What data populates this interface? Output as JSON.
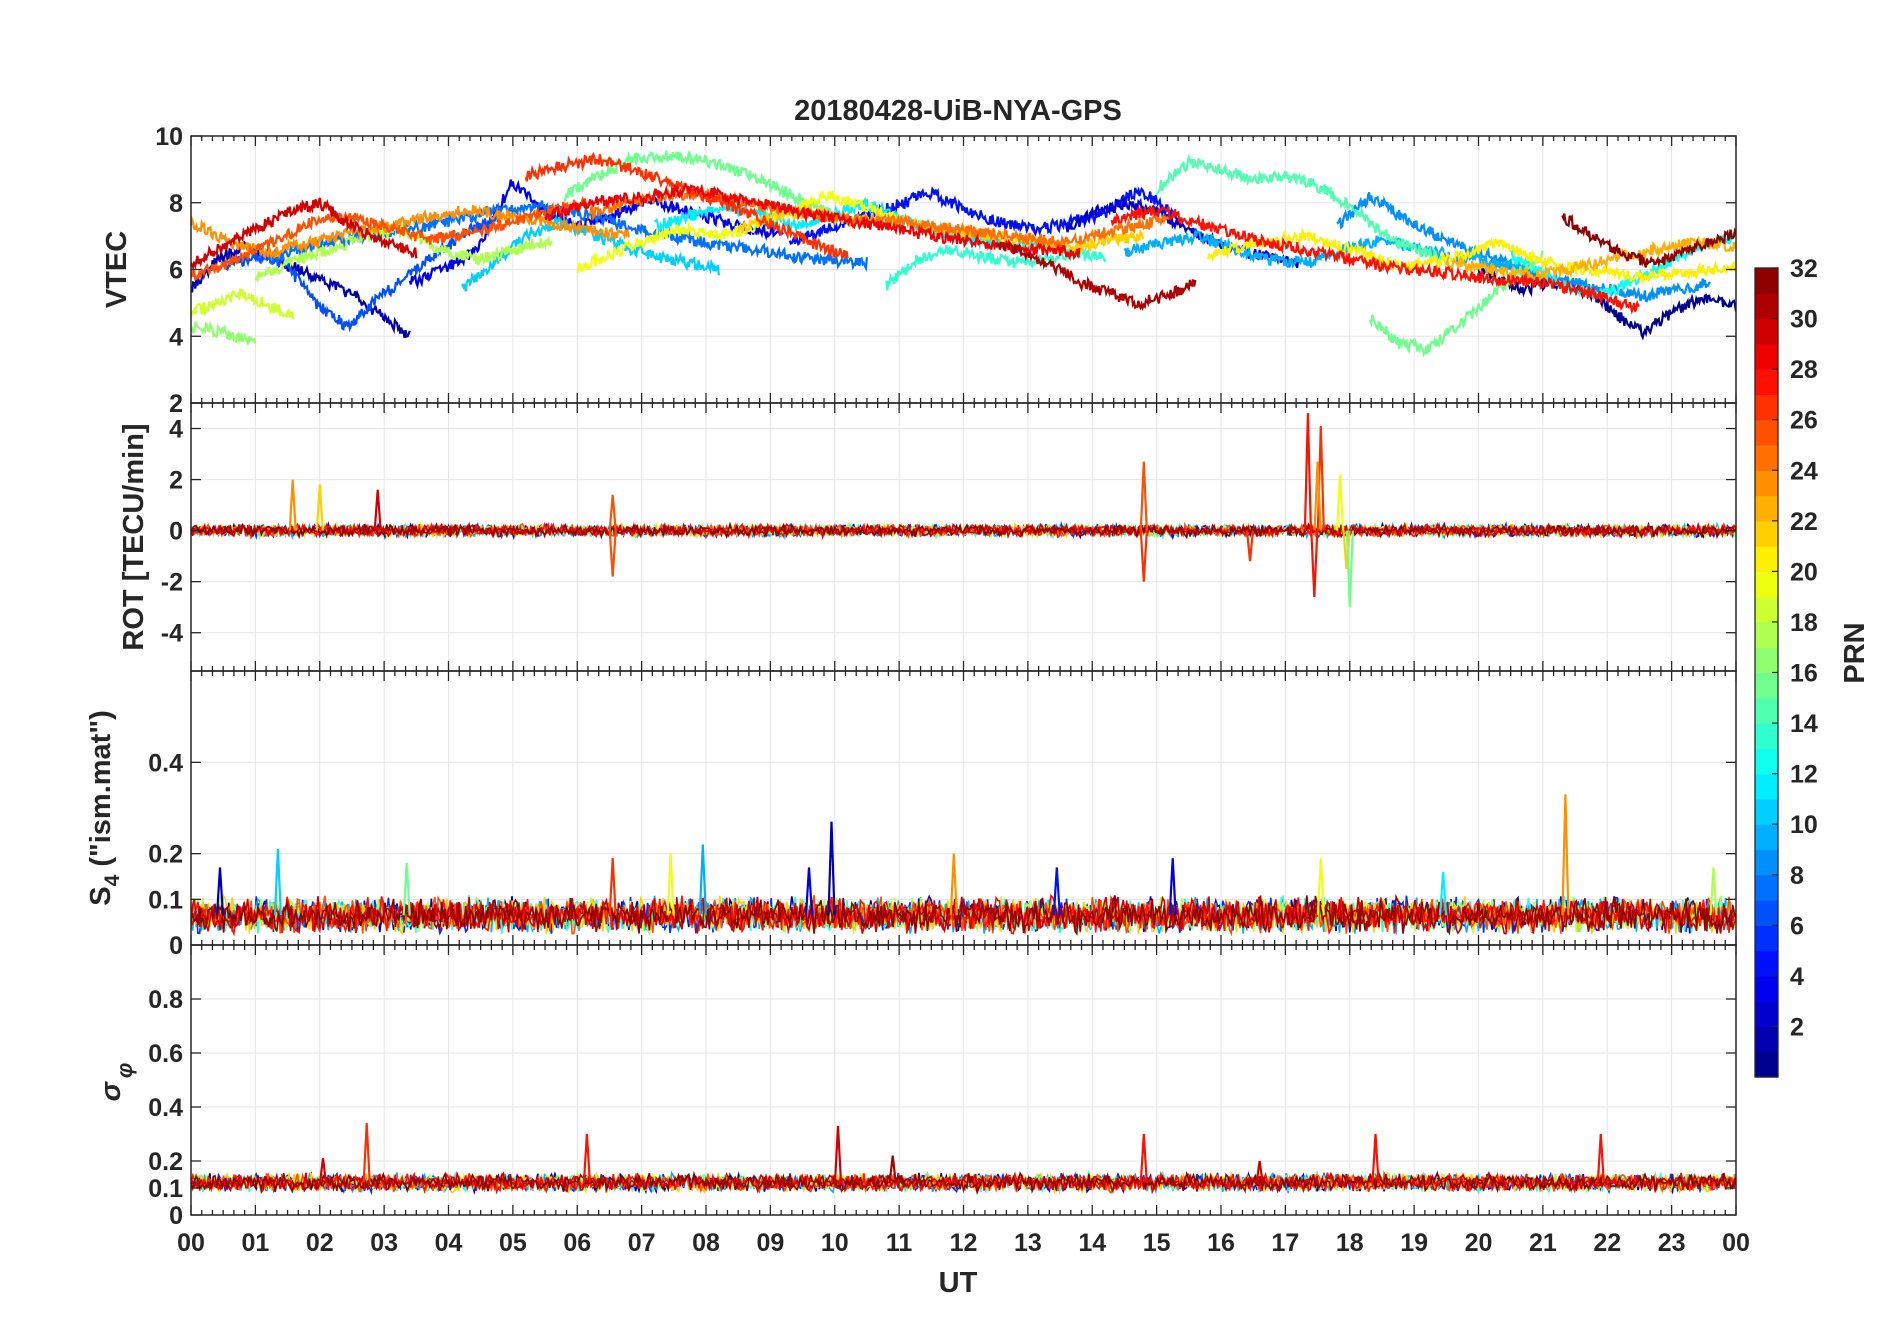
{
  "chart_data": {
    "type": "line",
    "title": "20180428-UiB-NYA-GPS",
    "xlabel": "UT",
    "x_tick_labels": [
      "00",
      "01",
      "02",
      "03",
      "04",
      "05",
      "06",
      "07",
      "08",
      "09",
      "10",
      "11",
      "12",
      "13",
      "14",
      "15",
      "16",
      "17",
      "18",
      "19",
      "20",
      "21",
      "22",
      "23",
      "00"
    ],
    "xlim_hours": [
      0,
      24
    ],
    "grid": true,
    "colorbar": {
      "label": "PRN",
      "range": [
        1,
        32
      ],
      "levels": 32,
      "colormap": "jet",
      "tick_labels": [
        "2",
        "4",
        "6",
        "8",
        "10",
        "12",
        "14",
        "16",
        "18",
        "20",
        "22",
        "24",
        "26",
        "28",
        "30",
        "32"
      ],
      "tick_values": [
        2,
        4,
        6,
        8,
        10,
        12,
        14,
        16,
        18,
        20,
        22,
        24,
        26,
        28,
        30,
        32
      ]
    },
    "panels": [
      {
        "name": "vtec",
        "ylabel": "VTEC",
        "ylim": [
          2,
          10
        ],
        "y_ticks": [
          2,
          4,
          6,
          8,
          10
        ],
        "y_tick_labels": [
          "2",
          "4",
          "6",
          "8",
          "10"
        ],
        "series": [
          {
            "prn": 2,
            "start": 0.0,
            "end": 3.4,
            "values": [
              5.4,
              6.3,
              6.7,
              6.3,
              6.0,
              5.6,
              5.2,
              4.6,
              4.0
            ]
          },
          {
            "prn": 4,
            "start": 3.4,
            "end": 9.2,
            "values": [
              5.6,
              6.0,
              6.6,
              8.6,
              7.7,
              7.3,
              7.6,
              8.1,
              7.8,
              7.5,
              7.2,
              7.1
            ]
          },
          {
            "prn": 5,
            "start": 9.3,
            "end": 15.3,
            "values": [
              6.8,
              7.2,
              7.6,
              7.9,
              8.3,
              7.8,
              7.4,
              7.2,
              7.4,
              7.7,
              8.4,
              7.6
            ]
          },
          {
            "prn": 3,
            "start": 13.6,
            "end": 17.2,
            "values": [
              7.2,
              7.8,
              8.0,
              7.6,
              7.0,
              6.6,
              6.4,
              6.2
            ]
          },
          {
            "prn": 1,
            "start": 20.0,
            "end": 24.0,
            "values": [
              6.0,
              5.7,
              5.4,
              5.6,
              5.5,
              5.2,
              4.6,
              4.1,
              4.6,
              5.0,
              5.1,
              4.9
            ]
          },
          {
            "prn": 7,
            "start": 0.5,
            "end": 4.8,
            "values": [
              6.1,
              6.4,
              6.2,
              5.0,
              4.3,
              5.1,
              5.8,
              6.5,
              7.2,
              7.6
            ]
          },
          {
            "prn": 8,
            "start": 1.2,
            "end": 10.5,
            "values": [
              6.3,
              6.8,
              7.1,
              7.3,
              7.7,
              7.9,
              7.6,
              7.1,
              6.8,
              6.6,
              6.3,
              6.2
            ]
          },
          {
            "prn": 9,
            "start": 17.8,
            "end": 23.6,
            "values": [
              7.3,
              8.2,
              7.5,
              7.0,
              6.6,
              6.2,
              5.8,
              5.6,
              5.4,
              5.2,
              5.4,
              5.6
            ]
          },
          {
            "prn": 10,
            "start": 14.5,
            "end": 20.8,
            "values": [
              6.5,
              6.8,
              7.0,
              6.6,
              6.3,
              6.2,
              6.6,
              6.9,
              6.6,
              6.4,
              6.2,
              6.1
            ]
          },
          {
            "prn": 11,
            "start": 4.2,
            "end": 8.2,
            "values": [
              5.4,
              6.2,
              7.0,
              7.4,
              7.1,
              6.7,
              6.4,
              6.2,
              6.0
            ]
          },
          {
            "prn": 12,
            "start": 7.2,
            "end": 13.2,
            "values": [
              7.3,
              7.6,
              7.9,
              7.7,
              7.3,
              7.6,
              8.0,
              7.5,
              7.2,
              6.9,
              6.7,
              6.8
            ]
          },
          {
            "prn": 13,
            "start": 20.5,
            "end": 24.0,
            "values": [
              6.4,
              6.0,
              5.5,
              5.2,
              5.5,
              5.9,
              6.4,
              6.8,
              7.0
            ]
          },
          {
            "prn": 14,
            "start": 10.8,
            "end": 14.2,
            "values": [
              5.5,
              6.3,
              6.6,
              6.4,
              6.2,
              6.3,
              6.5,
              6.4
            ]
          },
          {
            "prn": 15,
            "start": 15.0,
            "end": 19.5,
            "values": [
              8.4,
              9.2,
              9.0,
              8.7,
              8.8,
              8.5,
              7.9,
              7.1,
              6.6,
              6.3
            ]
          },
          {
            "prn": 16,
            "start": 5.8,
            "end": 10.0,
            "values": [
              8.2,
              8.8,
              9.3,
              9.4,
              9.3,
              9.0,
              8.6,
              8.1,
              7.6
            ]
          },
          {
            "prn": 17,
            "start": 0.0,
            "end": 1.0,
            "values": [
              4.3,
              4.2,
              4.0,
              3.8
            ]
          },
          {
            "prn": 16,
            "start": 18.3,
            "end": 21.0,
            "values": [
              4.6,
              3.8,
              3.6,
              4.3,
              5.0,
              5.8,
              6.4
            ]
          },
          {
            "prn": 18,
            "start": 1.0,
            "end": 5.6,
            "values": [
              5.8,
              6.2,
              6.6,
              7.0,
              7.2,
              6.6,
              6.3,
              6.6,
              6.9
            ]
          },
          {
            "prn": 19,
            "start": 0.0,
            "end": 1.6,
            "values": [
              4.7,
              5.0,
              5.3,
              4.9,
              4.6
            ]
          },
          {
            "prn": 20,
            "start": 6.0,
            "end": 11.0,
            "values": [
              6.0,
              6.5,
              6.9,
              7.2,
              7.0,
              7.3,
              7.8,
              8.2,
              7.9,
              7.5
            ]
          },
          {
            "prn": 21,
            "start": 15.8,
            "end": 24.0,
            "values": [
              6.4,
              6.8,
              7.0,
              6.6,
              6.1,
              6.3,
              6.8,
              6.2,
              6.0,
              5.8,
              5.9,
              6.1
            ]
          },
          {
            "prn": 22,
            "start": 8.5,
            "end": 14.8,
            "values": [
              7.2,
              7.6,
              7.8,
              7.4,
              7.6,
              7.3,
              7.1,
              7.0,
              6.8,
              6.6,
              6.9,
              7.0
            ]
          },
          {
            "prn": 23,
            "start": 19.5,
            "end": 24.0,
            "values": [
              6.2,
              6.0,
              5.8,
              6.0,
              6.3,
              6.6,
              6.8,
              6.7
            ]
          },
          {
            "prn": 24,
            "start": 0.0,
            "end": 6.8,
            "values": [
              7.4,
              6.8,
              6.5,
              6.8,
              7.1,
              7.3,
              7.6,
              7.8,
              7.6,
              7.4,
              7.2,
              7.0
            ]
          },
          {
            "prn": 25,
            "start": 6.2,
            "end": 15.2,
            "values": [
              7.7,
              8.1,
              8.3,
              8.0,
              7.7,
              7.5,
              7.4,
              7.2,
              7.0,
              6.8,
              7.2,
              7.5
            ]
          },
          {
            "prn": 26,
            "start": 0.0,
            "end": 6.2,
            "values": [
              5.8,
              6.2,
              6.8,
              7.4,
              7.6,
              7.2,
              6.9,
              7.1,
              7.4,
              7.8,
              8.0
            ]
          },
          {
            "prn": 27,
            "start": 5.2,
            "end": 10.2,
            "values": [
              8.8,
              9.1,
              9.3,
              9.0,
              8.6,
              8.2,
              7.8,
              7.3,
              6.8,
              6.4
            ]
          },
          {
            "prn": 28,
            "start": 14.3,
            "end": 22.5,
            "values": [
              7.5,
              7.8,
              7.3,
              6.9,
              6.6,
              6.3,
              6.0,
              5.9,
              5.7,
              5.6,
              5.3,
              4.8
            ]
          },
          {
            "prn": 29,
            "start": 5.5,
            "end": 13.8,
            "values": [
              7.6,
              8.0,
              8.2,
              8.4,
              8.1,
              7.8,
              7.5,
              7.3,
              7.0,
              6.8,
              6.6,
              6.5
            ]
          },
          {
            "prn": 30,
            "start": 0.0,
            "end": 3.5,
            "values": [
              6.2,
              6.7,
              7.2,
              7.7,
              8.0,
              7.3,
              6.8,
              6.5
            ]
          },
          {
            "prn": 31,
            "start": 12.5,
            "end": 15.6,
            "values": [
              6.8,
              6.5,
              6.1,
              5.6,
              5.3,
              5.0,
              5.2,
              5.6
            ]
          },
          {
            "prn": 32,
            "start": 21.3,
            "end": 24.0,
            "values": [
              7.6,
              7.0,
              6.5,
              6.2,
              6.4,
              6.8,
              7.1
            ]
          }
        ]
      },
      {
        "name": "rot",
        "ylabel": "ROT [TECU/min]",
        "ylim": [
          -5.5,
          5
        ],
        "y_ticks": [
          -4,
          -2,
          0,
          2,
          4
        ],
        "y_tick_labels": [
          "-4",
          "-2",
          "0",
          "2",
          "4"
        ],
        "baseline": 0.0,
        "noise_amplitude": 0.18,
        "spikes": [
          {
            "t": 1.58,
            "value": 2.0,
            "prn": 24
          },
          {
            "t": 2.0,
            "value": 1.8,
            "prn": 22
          },
          {
            "t": 2.9,
            "value": 1.6,
            "prn": 30
          },
          {
            "t": 6.55,
            "value": 1.4,
            "prn": 26
          },
          {
            "t": 6.55,
            "value": -1.8,
            "prn": 26
          },
          {
            "t": 14.8,
            "value": 2.7,
            "prn": 26
          },
          {
            "t": 14.8,
            "value": -2.0,
            "prn": 27
          },
          {
            "t": 16.45,
            "value": -1.2,
            "prn": 27
          },
          {
            "t": 17.35,
            "value": 4.6,
            "prn": 28
          },
          {
            "t": 17.45,
            "value": -2.6,
            "prn": 28
          },
          {
            "t": 17.55,
            "value": 4.1,
            "prn": 27
          },
          {
            "t": 17.5,
            "value": 2.7,
            "prn": 24
          },
          {
            "t": 17.85,
            "value": 2.2,
            "prn": 20
          },
          {
            "t": 17.95,
            "value": -1.5,
            "prn": 22
          },
          {
            "t": 18.0,
            "value": -3.0,
            "prn": 16
          }
        ]
      },
      {
        "name": "s4",
        "ylabel": "S4 (\"ism.mat\")",
        "ylabel_parts": [
          "S",
          "4",
          " (\"ism.mat\")"
        ],
        "ylim": [
          0,
          0.6
        ],
        "y_ticks": [
          0,
          0.1,
          0.2,
          0.4
        ],
        "y_tick_labels": [
          "0",
          "0.1",
          "0.2",
          "0.4"
        ],
        "baseline": 0.065,
        "noise_amplitude": 0.03,
        "spikes": [
          {
            "t": 0.45,
            "value": 0.17,
            "prn": 2
          },
          {
            "t": 1.35,
            "value": 0.21,
            "prn": 11
          },
          {
            "t": 3.35,
            "value": 0.18,
            "prn": 16
          },
          {
            "t": 6.55,
            "value": 0.19,
            "prn": 27
          },
          {
            "t": 7.45,
            "value": 0.2,
            "prn": 20
          },
          {
            "t": 7.95,
            "value": 0.22,
            "prn": 10
          },
          {
            "t": 9.6,
            "value": 0.17,
            "prn": 4
          },
          {
            "t": 9.95,
            "value": 0.27,
            "prn": 2
          },
          {
            "t": 11.85,
            "value": 0.2,
            "prn": 24
          },
          {
            "t": 13.45,
            "value": 0.17,
            "prn": 5
          },
          {
            "t": 15.25,
            "value": 0.19,
            "prn": 4
          },
          {
            "t": 17.55,
            "value": 0.19,
            "prn": 20
          },
          {
            "t": 19.45,
            "value": 0.16,
            "prn": 12
          },
          {
            "t": 21.35,
            "value": 0.33,
            "prn": 24
          },
          {
            "t": 23.65,
            "value": 0.17,
            "prn": 18
          }
        ]
      },
      {
        "name": "sigma-phi",
        "ylabel": "σ φ",
        "ylabel_parts": [
          "σ",
          "φ"
        ],
        "ylim": [
          0,
          1
        ],
        "y_ticks": [
          0,
          0.1,
          0.2,
          0.4,
          0.6,
          0.8
        ],
        "y_tick_labels": [
          "0",
          "0.1",
          "0.2",
          "0.4",
          "0.6",
          "0.8"
        ],
        "baseline": 0.12,
        "noise_amplitude": 0.025,
        "spikes": [
          {
            "t": 2.73,
            "value": 0.34,
            "prn": 27
          },
          {
            "t": 6.15,
            "value": 0.3,
            "prn": 28
          },
          {
            "t": 10.05,
            "value": 0.33,
            "prn": 30
          },
          {
            "t": 14.8,
            "value": 0.3,
            "prn": 28
          },
          {
            "t": 18.4,
            "value": 0.3,
            "prn": 28
          },
          {
            "t": 21.9,
            "value": 0.3,
            "prn": 28
          },
          {
            "t": 2.05,
            "value": 0.21,
            "prn": 30
          },
          {
            "t": 16.6,
            "value": 0.2,
            "prn": 30
          },
          {
            "t": 10.9,
            "value": 0.22,
            "prn": 31
          }
        ]
      }
    ]
  }
}
